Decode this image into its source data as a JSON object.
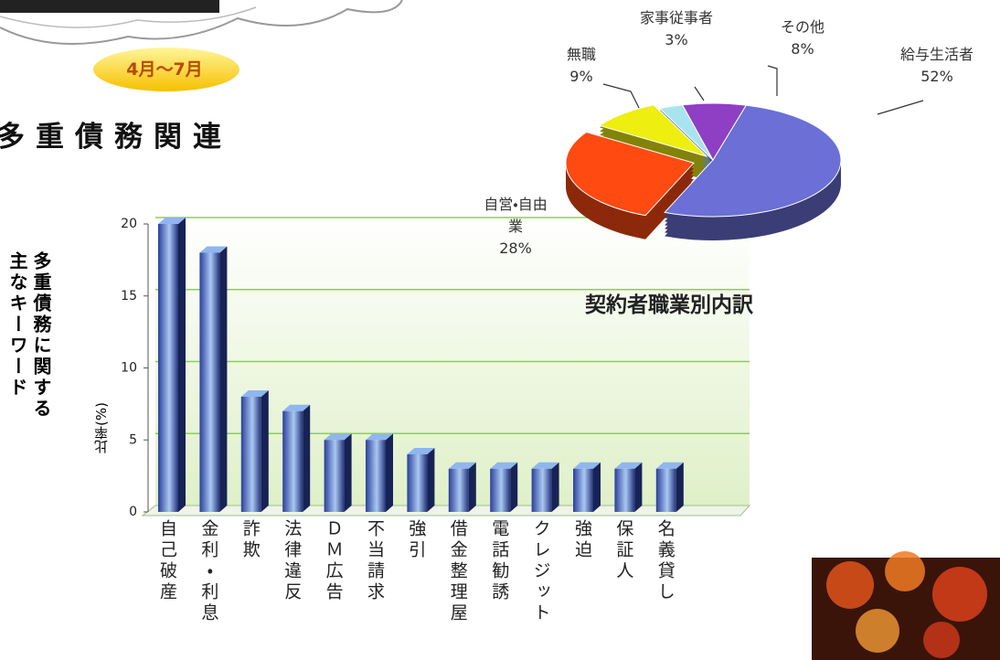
{
  "page": {
    "badge": "4月～7月",
    "headline": "多重債務関連",
    "side_heading": [
      "多重債務に関する",
      "主なキーワード"
    ]
  },
  "chart_data": [
    {
      "type": "bar",
      "y_label": "比率(%)",
      "categories": [
        "自己破産",
        "金利・利息",
        "詐欺",
        "法律違反",
        "ＤＭ広告",
        "不当請求",
        "強引",
        "借金整理屋",
        "電話勧誘",
        "クレジット",
        "強迫",
        "保証人",
        "名義貸し"
      ],
      "values": [
        20,
        18,
        8,
        7,
        5,
        5,
        4,
        3,
        3,
        3,
        3,
        3,
        3
      ],
      "color": "#2a3f9a",
      "ylim": [
        0,
        20
      ],
      "yticks": [
        0,
        5,
        10,
        15,
        20
      ],
      "grid": true
    },
    {
      "type": "pie",
      "title": "契約者職業別内訳",
      "categories": [
        "給与生活者",
        "自営・自由業",
        "無職",
        "家事従事者",
        "その他"
      ],
      "values": [
        52,
        28,
        9,
        3,
        8
      ],
      "value_labels": [
        "52%",
        "28%",
        "9%",
        "3%",
        "8%"
      ],
      "colors": [
        "#6b6fd6",
        "#ff4a12",
        "#eeee10",
        "#a8e4f0",
        "#8e3fc4"
      ]
    }
  ]
}
